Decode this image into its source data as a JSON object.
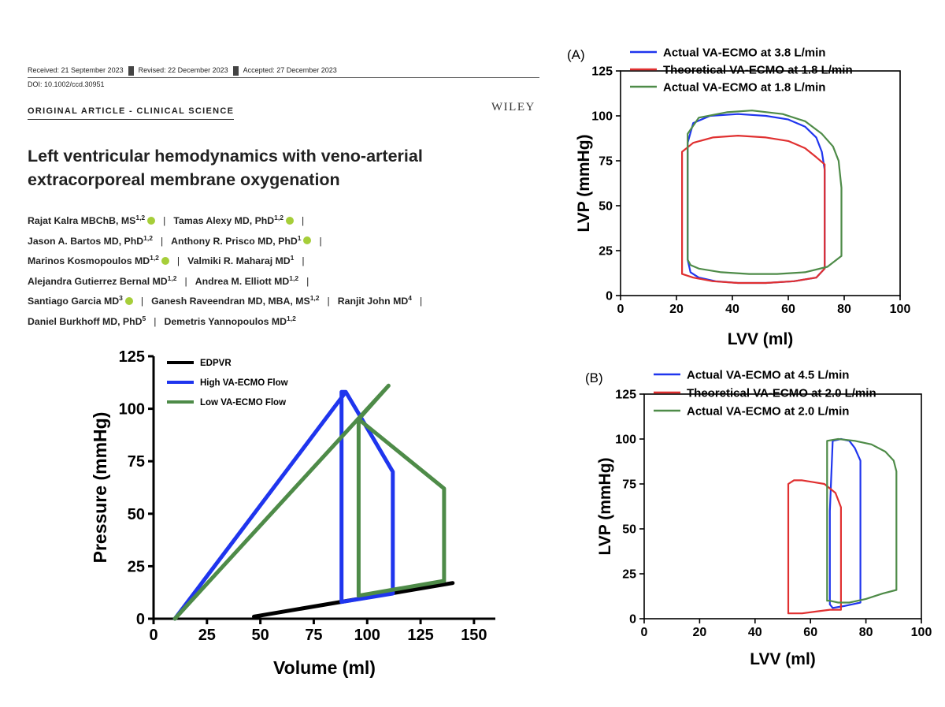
{
  "header": {
    "received": "Received: 21 September 2023",
    "revised": "Revised: 22 December 2023",
    "accepted": "Accepted: 27 December 2023",
    "doi": "DOI: 10.1002/ccd.30951",
    "section": "ORIGINAL ARTICLE - CLINICAL SCIENCE",
    "publisher": "WILEY"
  },
  "title": "Left ventricular hemodynamics with veno-arterial extracorporeal membrane oxygenation",
  "authors": [
    {
      "name": "Rajat Kalra MBChB, MS",
      "aff": "1,2",
      "orcid": true
    },
    {
      "name": "Tamas Alexy MD, PhD",
      "aff": "1,2",
      "orcid": true
    },
    {
      "name": "Jason A. Bartos MD, PhD",
      "aff": "1,2",
      "orcid": false
    },
    {
      "name": "Anthony R. Prisco MD, PhD",
      "aff": "1",
      "orcid": true
    },
    {
      "name": "Marinos Kosmopoulos MD",
      "aff": "1,2",
      "orcid": true
    },
    {
      "name": "Valmiki R. Maharaj MD",
      "aff": "1",
      "orcid": false
    },
    {
      "name": "Alejandra Gutierrez Bernal MD",
      "aff": "1,2",
      "orcid": false
    },
    {
      "name": "Andrea M. Elliott MD",
      "aff": "1,2",
      "orcid": false
    },
    {
      "name": "Santiago Garcia MD",
      "aff": "3",
      "orcid": true
    },
    {
      "name": "Ganesh Raveendran MD, MBA, MS",
      "aff": "1,2",
      "orcid": false
    },
    {
      "name": "Ranjit John MD",
      "aff": "4",
      "orcid": false
    },
    {
      "name": "Daniel Burkhoff MD, PhD",
      "aff": "5",
      "orcid": false
    },
    {
      "name": "Demetris Yannopoulos MD",
      "aff": "1,2",
      "orcid": false
    }
  ],
  "colors": {
    "blue": "#1f35ee",
    "green": "#4e8b48",
    "red": "#e03030",
    "black": "#000000"
  },
  "chart_data": [
    {
      "id": "pv-schematic",
      "type": "line",
      "xlabel": "Volume (ml)",
      "ylabel": "Pressure (mmHg)",
      "xlim": [
        0,
        160
      ],
      "ylim": [
        0,
        125
      ],
      "xticks": [
        0,
        25,
        50,
        75,
        100,
        125,
        150
      ],
      "yticks": [
        0,
        25,
        50,
        75,
        100,
        125
      ],
      "legend_position": "top-left",
      "series": [
        {
          "name": "EDPVR",
          "color": "#000000",
          "x": [
            47,
            140
          ],
          "y": [
            1,
            17
          ]
        },
        {
          "name": "High VA-ECMO Flow",
          "color": "#1f35ee",
          "x": [
            10,
            90,
            88,
            88,
            112,
            112,
            97,
            90
          ],
          "y": [
            0,
            108,
            108,
            8,
            12,
            70,
            96,
            108
          ]
        },
        {
          "name": "Low VA-ECMO Flow",
          "color": "#4e8b48",
          "x": [
            10,
            110,
            96,
            96,
            136,
            136,
            96
          ],
          "y": [
            0,
            111,
            95,
            11,
            18,
            62,
            95
          ]
        }
      ]
    },
    {
      "id": "panel-A",
      "panel_label": "(A)",
      "type": "line",
      "xlabel": "LVV (ml)",
      "ylabel": "LVP (mmHg)",
      "xlim": [
        0,
        100
      ],
      "ylim": [
        0,
        125
      ],
      "xticks": [
        0,
        20,
        40,
        60,
        80,
        100
      ],
      "yticks": [
        0,
        25,
        50,
        75,
        100,
        125
      ],
      "legend_position": "top",
      "series": [
        {
          "name": "Actual VA-ECMO at 3.8 L/min",
          "color": "#1f35ee",
          "x": [
            24,
            26,
            32,
            42,
            52,
            60,
            66,
            70,
            72,
            73,
            73,
            70,
            62,
            52,
            42,
            34,
            28,
            25,
            24,
            24
          ],
          "y": [
            85,
            96,
            100,
            101,
            100,
            98,
            94,
            88,
            80,
            70,
            15,
            10,
            8,
            7,
            7,
            8,
            10,
            13,
            20,
            85
          ]
        },
        {
          "name": "Theoretical VA-ECMO at 1.8 L/min",
          "color": "#e03030",
          "x": [
            22,
            22,
            26,
            33,
            42,
            52,
            60,
            66,
            70,
            73,
            73,
            70,
            62,
            52,
            42,
            33,
            26,
            22,
            22
          ],
          "y": [
            15,
            80,
            85,
            88,
            89,
            88,
            86,
            82,
            77,
            73,
            15,
            10,
            8,
            7,
            7,
            8,
            10,
            12,
            15
          ]
        },
        {
          "name": "Actual VA-ECMO at 1.8 L/min",
          "color": "#4e8b48",
          "x": [
            24,
            24,
            28,
            38,
            47,
            58,
            66,
            72,
            76,
            78,
            79,
            79,
            74,
            66,
            56,
            46,
            36,
            28,
            25,
            24
          ],
          "y": [
            20,
            90,
            99,
            102,
            103,
            101,
            97,
            90,
            83,
            75,
            60,
            22,
            16,
            13,
            12,
            12,
            13,
            15,
            17,
            20
          ]
        }
      ]
    },
    {
      "id": "panel-B",
      "panel_label": "(B)",
      "type": "line",
      "xlabel": "LVV (ml)",
      "ylabel": "LVP (mmHg)",
      "xlim": [
        0,
        100
      ],
      "ylim": [
        0,
        125
      ],
      "xticks": [
        0,
        20,
        40,
        60,
        80,
        100
      ],
      "yticks": [
        0,
        25,
        50,
        75,
        100,
        125
      ],
      "legend_position": "top",
      "series": [
        {
          "name": "Actual VA-ECMO at 4.5 L/min",
          "color": "#1f35ee",
          "x": [
            67,
            68,
            71,
            74,
            76,
            78,
            78,
            75,
            72,
            68,
            67,
            67
          ],
          "y": [
            60,
            99,
            100,
            99,
            95,
            88,
            9,
            8,
            7,
            6,
            8,
            60
          ]
        },
        {
          "name": "Theoretical VA-ECMO at 2.0 L/min",
          "color": "#e03030",
          "x": [
            52,
            52,
            54,
            57,
            61,
            65,
            69,
            71,
            71,
            67,
            62,
            57,
            54,
            52
          ],
          "y": [
            3,
            75,
            77,
            77,
            76,
            75,
            70,
            62,
            5,
            5,
            4,
            3,
            3,
            3
          ]
        },
        {
          "name": "Actual VA-ECMO at 2.0 L/min",
          "color": "#4e8b48",
          "x": [
            66,
            66,
            70,
            76,
            82,
            87,
            90,
            91,
            91,
            86,
            80,
            74,
            70,
            67,
            66
          ],
          "y": [
            10,
            99,
            100,
            99,
            97,
            93,
            88,
            82,
            16,
            14,
            11,
            9,
            9,
            10,
            10
          ]
        }
      ]
    }
  ]
}
